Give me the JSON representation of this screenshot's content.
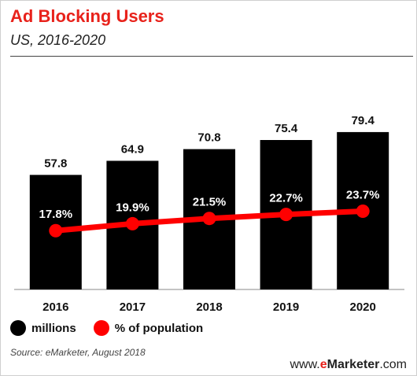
{
  "header": {
    "title": "Ad Blocking Users",
    "subtitle": "US, 2016-2020"
  },
  "chart_data": {
    "type": "bar",
    "title": "Ad Blocking Users",
    "subtitle": "US, 2016-2020",
    "categories": [
      "2016",
      "2017",
      "2018",
      "2019",
      "2020"
    ],
    "series": [
      {
        "name": "millions",
        "type": "bar",
        "values": [
          57.8,
          64.9,
          70.8,
          75.4,
          79.4
        ],
        "labels": [
          "57.8",
          "64.9",
          "70.8",
          "75.4",
          "79.4"
        ],
        "color": "#000000"
      },
      {
        "name": "% of population",
        "type": "line",
        "values": [
          17.8,
          19.9,
          21.5,
          22.7,
          23.7
        ],
        "labels": [
          "17.8%",
          "19.9%",
          "21.5%",
          "22.7%",
          "23.7%"
        ],
        "color": "#ff0000"
      }
    ],
    "ylim": [
      0,
      100
    ],
    "y2lim": [
      0,
      60
    ],
    "grid": false,
    "legend": "bottom-left"
  },
  "legend": {
    "items": [
      {
        "label": "millions",
        "color": "#000000"
      },
      {
        "label": "% of population",
        "color": "#ff0000"
      }
    ]
  },
  "footer": {
    "source": "Source: eMarketer, August 2018",
    "brand_prefix": "www.",
    "brand_e": "e",
    "brand_name": "Marketer",
    "brand_suffix": ".com"
  }
}
